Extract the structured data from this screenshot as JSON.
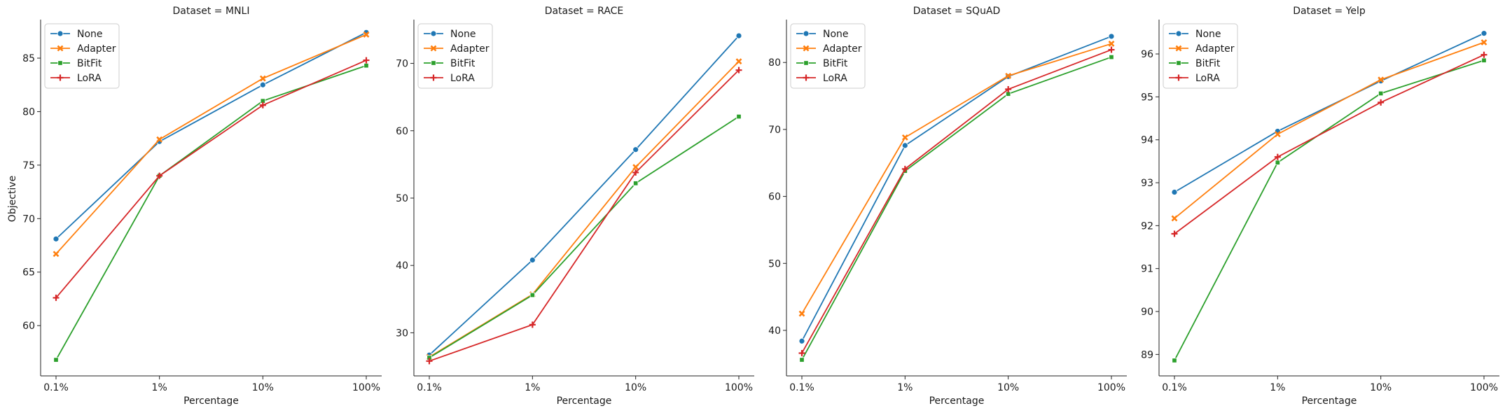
{
  "figure": {
    "ylabel": "Objective",
    "xlabel": "Percentage"
  },
  "colors": {
    "None": "#1f77b4",
    "Adapter": "#ff7f0e",
    "BitFit": "#2ca02c",
    "LoRA": "#d62728"
  },
  "legend": {
    "placement": "upper-left",
    "entries": [
      {
        "name": "None",
        "marker": "circle"
      },
      {
        "name": "Adapter",
        "marker": "x"
      },
      {
        "name": "BitFit",
        "marker": "square"
      },
      {
        "name": "LoRA",
        "marker": "plus"
      }
    ]
  },
  "chart_data": [
    {
      "type": "line",
      "title": "Dataset = MNLI",
      "xlabel": "Percentage",
      "ylabel": "Objective",
      "categories": [
        "0.1%",
        "1%",
        "10%",
        "100%"
      ],
      "ylim": [
        55.3,
        88.6
      ],
      "yticks": [
        60,
        65,
        70,
        75,
        80,
        85
      ],
      "series": [
        {
          "name": "None",
          "values": [
            68.1,
            77.2,
            82.5,
            87.4
          ]
        },
        {
          "name": "Adapter",
          "values": [
            66.7,
            77.4,
            83.1,
            87.2
          ]
        },
        {
          "name": "BitFit",
          "values": [
            56.8,
            74.0,
            81.0,
            84.3
          ]
        },
        {
          "name": "LoRA",
          "values": [
            62.6,
            74.0,
            80.6,
            84.8
          ]
        }
      ]
    },
    {
      "type": "line",
      "title": "Dataset = RACE",
      "xlabel": "Percentage",
      "ylabel": "",
      "categories": [
        "0.1%",
        "1%",
        "10%",
        "100%"
      ],
      "ylim": [
        23.6,
        76.5
      ],
      "yticks": [
        30,
        40,
        50,
        60,
        70
      ],
      "series": [
        {
          "name": "None",
          "values": [
            26.7,
            40.8,
            57.2,
            74.1
          ]
        },
        {
          "name": "Adapter",
          "values": [
            26.4,
            35.7,
            54.6,
            70.3
          ]
        },
        {
          "name": "BitFit",
          "values": [
            26.3,
            35.6,
            52.2,
            62.1
          ]
        },
        {
          "name": "LoRA",
          "values": [
            25.8,
            31.2,
            53.8,
            69.0
          ]
        }
      ]
    },
    {
      "type": "line",
      "title": "Dataset = SQuAD",
      "xlabel": "Percentage",
      "ylabel": "",
      "categories": [
        "0.1%",
        "1%",
        "10%",
        "100%"
      ],
      "ylim": [
        33.2,
        86.4
      ],
      "yticks": [
        40,
        50,
        60,
        70,
        80
      ],
      "series": [
        {
          "name": "None",
          "values": [
            38.4,
            67.6,
            77.9,
            83.9
          ]
        },
        {
          "name": "Adapter",
          "values": [
            42.5,
            68.8,
            78.0,
            82.8
          ]
        },
        {
          "name": "BitFit",
          "values": [
            35.6,
            63.8,
            75.3,
            80.8
          ]
        },
        {
          "name": "LoRA",
          "values": [
            36.6,
            64.1,
            76.0,
            81.9
          ]
        }
      ]
    },
    {
      "type": "line",
      "title": "Dataset = Yelp",
      "xlabel": "Percentage",
      "ylabel": "",
      "categories": [
        "0.1%",
        "1%",
        "10%",
        "100%"
      ],
      "ylim": [
        88.5,
        96.8
      ],
      "yticks": [
        89,
        90,
        91,
        92,
        93,
        94,
        95,
        96
      ],
      "series": [
        {
          "name": "None",
          "values": [
            92.78,
            94.2,
            95.37,
            96.48
          ]
        },
        {
          "name": "Adapter",
          "values": [
            92.17,
            94.13,
            95.4,
            96.27
          ]
        },
        {
          "name": "BitFit",
          "values": [
            88.86,
            93.47,
            95.08,
            95.85
          ]
        },
        {
          "name": "LoRA",
          "values": [
            91.81,
            93.6,
            94.87,
            95.98
          ]
        }
      ]
    }
  ]
}
